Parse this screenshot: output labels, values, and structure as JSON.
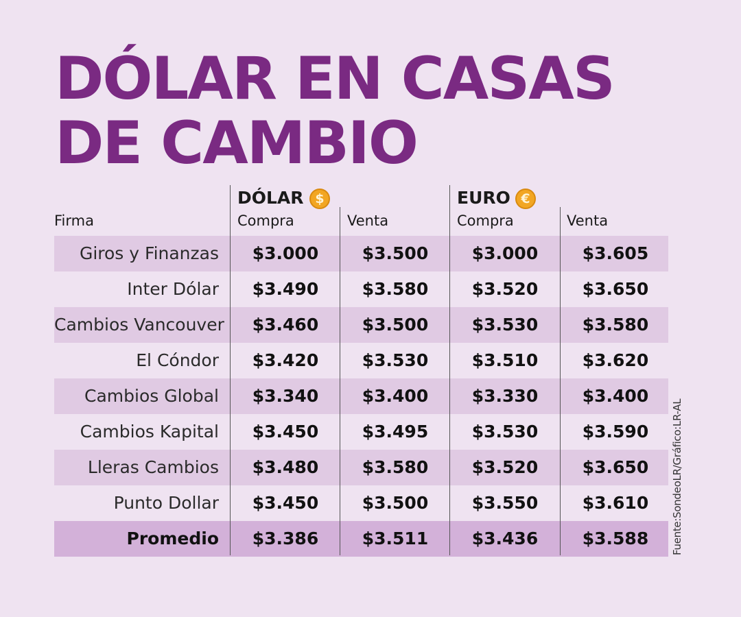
{
  "title": {
    "line1": "DÓLAR EN CASAS",
    "line2": "DE CAMBIO"
  },
  "colors": {
    "background": "#efe3f1",
    "title": "#7a2a82",
    "row_shaded": "#e0cae3",
    "row_total": "#d3b1d9",
    "coin": "#f2a623"
  },
  "header": {
    "firm_label": "Firma",
    "groups": [
      {
        "label": "DÓLAR",
        "icon": "dollar-coin-icon",
        "symbol": "$"
      },
      {
        "label": "EURO",
        "icon": "euro-coin-icon",
        "symbol": "€"
      }
    ],
    "sub": [
      "Compra",
      "Venta",
      "Compra",
      "Venta"
    ]
  },
  "chart_data": {
    "type": "table",
    "title": "DÓLAR EN CASAS DE CAMBIO",
    "columns": [
      "Firma",
      "DÓLAR Compra",
      "DÓLAR Venta",
      "EURO Compra",
      "EURO Venta"
    ],
    "rows": [
      {
        "firma": "Giros y Finanzas",
        "values": [
          "$3.000",
          "$3.500",
          "$3.000",
          "$3.605"
        ]
      },
      {
        "firma": "Inter Dólar",
        "values": [
          "$3.490",
          "$3.580",
          "$3.520",
          "$3.650"
        ]
      },
      {
        "firma": "Cambios Vancouver",
        "values": [
          "$3.460",
          "$3.500",
          "$3.530",
          "$3.580"
        ]
      },
      {
        "firma": "El Cóndor",
        "values": [
          "$3.420",
          "$3.530",
          "$3.510",
          "$3.620"
        ]
      },
      {
        "firma": "Cambios Global",
        "values": [
          "$3.340",
          "$3.400",
          "$3.330",
          "$3.400"
        ]
      },
      {
        "firma": "Cambios Kapital",
        "values": [
          "$3.450",
          "$3.495",
          "$3.530",
          "$3.590"
        ]
      },
      {
        "firma": "Lleras Cambios",
        "values": [
          "$3.480",
          "$3.580",
          "$3.520",
          "$3.650"
        ]
      },
      {
        "firma": "Punto Dollar",
        "values": [
          "$3.450",
          "$3.500",
          "$3.550",
          "$3.610"
        ]
      }
    ],
    "total": {
      "firma": "Promedio",
      "values": [
        "$3.386",
        "$3.511",
        "$3.436",
        "$3.588"
      ]
    }
  },
  "source": "Fuente:SondeoLR/Gráfico:LR-AL"
}
